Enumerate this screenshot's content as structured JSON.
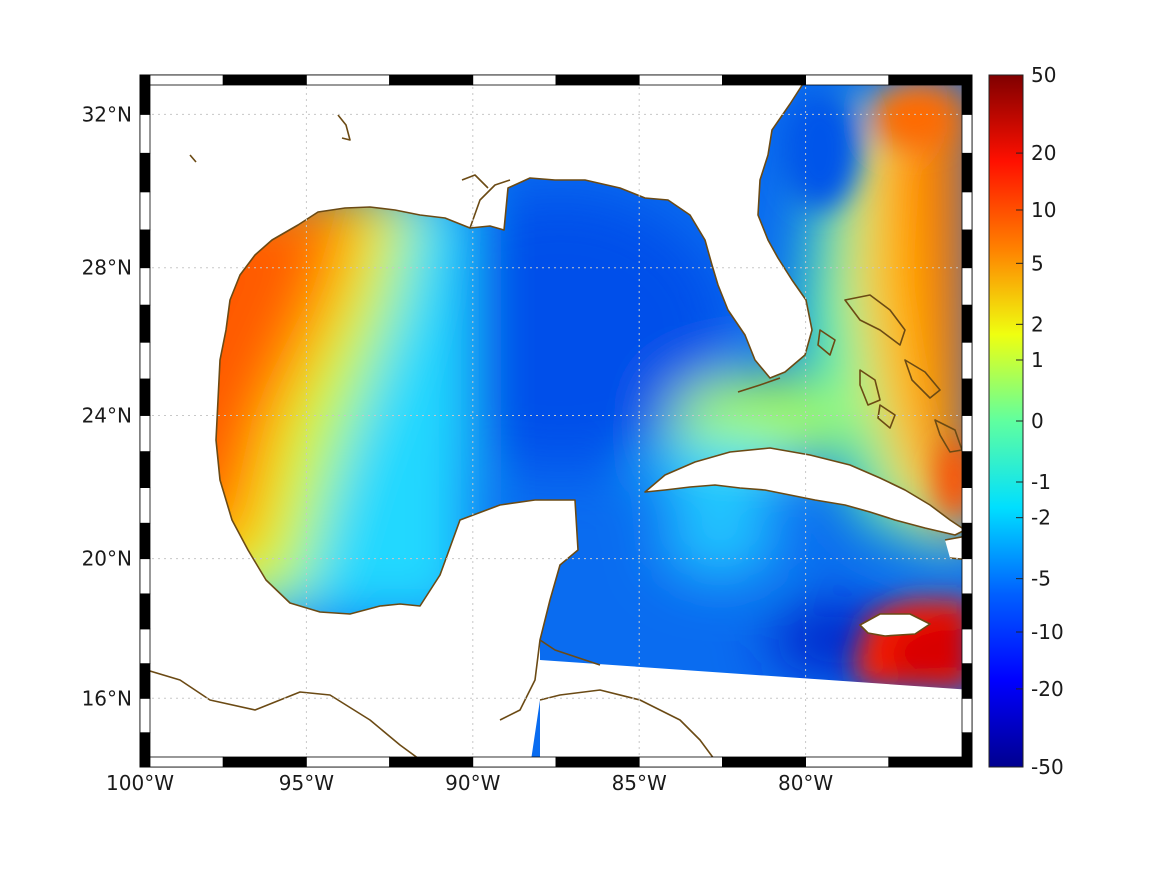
{
  "map": {
    "projection": "mercator",
    "lon_range": [
      -100,
      -75
    ],
    "lat_range": [
      14,
      33
    ],
    "lon_ticks": [
      {
        "lon": -100,
        "label": "100°W"
      },
      {
        "lon": -95,
        "label": "95°W"
      },
      {
        "lon": -90,
        "label": "90°W"
      },
      {
        "lon": -85,
        "label": "85°W"
      },
      {
        "lon": -80,
        "label": "80°W"
      }
    ],
    "lat_ticks": [
      {
        "lat": 16,
        "label": "16°N"
      },
      {
        "lat": 20,
        "label": "20°N"
      },
      {
        "lat": 24,
        "label": "24°N"
      },
      {
        "lat": 28,
        "label": "28°N"
      },
      {
        "lat": 32,
        "label": "32°N"
      }
    ],
    "grid": true,
    "grid_style": "dotted",
    "coastline_color": "#6b4a14",
    "land_color": "#ffffff",
    "frame_style": "alternating black/white"
  },
  "colorbar": {
    "colormap": "jet",
    "scale": "symmetric-log",
    "range": [
      -50,
      50
    ],
    "tick_labels": [
      {
        "value": 50,
        "label": "50"
      },
      {
        "value": 20,
        "label": "20"
      },
      {
        "value": 10,
        "label": "10"
      },
      {
        "value": 5,
        "label": "5"
      },
      {
        "value": 2,
        "label": "2"
      },
      {
        "value": 1,
        "label": "1"
      },
      {
        "value": 0,
        "label": "0"
      },
      {
        "value": -1,
        "label": "-1"
      },
      {
        "value": -2,
        "label": "-2"
      },
      {
        "value": -5,
        "label": "-5"
      },
      {
        "value": -10,
        "label": "-10"
      },
      {
        "value": -20,
        "label": "-20"
      },
      {
        "value": -50,
        "label": "-50"
      }
    ]
  },
  "field": {
    "pattern": "positive (orange/red) over western Gulf shelf and Bahamas, Atlantic east of Florida, and south of Jamaica; negative (blue) across central/eastern Gulf, Caribbean and Florida coast",
    "west_gulf_value": 7,
    "east_gulf_value": -6,
    "caribbean_value": -5,
    "southeast_max": 30,
    "southeast_min": -30
  }
}
